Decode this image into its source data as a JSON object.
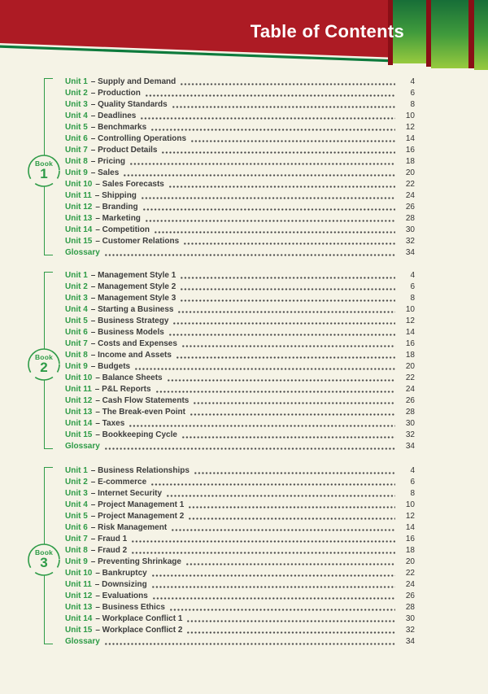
{
  "header": {
    "title": "Table of Contents"
  },
  "colors": {
    "banner_red": "#ad1b24",
    "strip_red": "#8a0f16",
    "slant_green": "#0d7a3c",
    "bar_green_top": "#176e38",
    "bar_green_mid": "#3f9a3c",
    "bar_green_bottom": "#97ca3e",
    "accent_green": "#2e9b47",
    "text_dark": "#3d3d3d",
    "background": "#f5f3e6"
  },
  "books": [
    {
      "badge_word": "Book",
      "number": "1",
      "entries": [
        {
          "num": "Unit 1",
          "title": "– Supply and Demand",
          "page": "4"
        },
        {
          "num": "Unit 2",
          "title": "– Production",
          "page": "6"
        },
        {
          "num": "Unit 3",
          "title": "– Quality Standards",
          "page": "8"
        },
        {
          "num": "Unit 4",
          "title": "– Deadlines",
          "page": "10"
        },
        {
          "num": "Unit 5",
          "title": "– Benchmarks",
          "page": "12"
        },
        {
          "num": "Unit 6",
          "title": "– Controlling Operations",
          "page": "14"
        },
        {
          "num": "Unit 7",
          "title": "– Product Details",
          "page": "16"
        },
        {
          "num": "Unit 8",
          "title": "– Pricing",
          "page": "18"
        },
        {
          "num": "Unit 9",
          "title": "– Sales",
          "page": "20"
        },
        {
          "num": "Unit 10",
          "title": "– Sales Forecasts",
          "page": "22"
        },
        {
          "num": "Unit 11",
          "title": "– Shipping",
          "page": "24"
        },
        {
          "num": "Unit 12",
          "title": "– Branding",
          "page": "26"
        },
        {
          "num": "Unit 13",
          "title": "– Marketing",
          "page": "28"
        },
        {
          "num": "Unit 14",
          "title": "– Competition",
          "page": "30"
        },
        {
          "num": "Unit 15",
          "title": "– Customer Relations",
          "page": "32"
        },
        {
          "num": "Glossary",
          "title": "",
          "page": "34"
        }
      ]
    },
    {
      "badge_word": "Book",
      "number": "2",
      "entries": [
        {
          "num": "Unit 1",
          "title": "– Management Style 1",
          "page": "4"
        },
        {
          "num": "Unit 2",
          "title": "– Management Style 2",
          "page": "6"
        },
        {
          "num": "Unit 3",
          "title": "– Management Style 3",
          "page": "8"
        },
        {
          "num": "Unit 4",
          "title": "– Starting a Business",
          "page": "10"
        },
        {
          "num": "Unit 5",
          "title": "– Business Strategy",
          "page": "12"
        },
        {
          "num": "Unit 6",
          "title": "– Business Models",
          "page": "14"
        },
        {
          "num": "Unit 7",
          "title": "– Costs and Expenses",
          "page": "16"
        },
        {
          "num": "Unit 8",
          "title": "– Income and Assets",
          "page": "18"
        },
        {
          "num": "Unit 9",
          "title": "– Budgets",
          "page": "20"
        },
        {
          "num": "Unit 10",
          "title": "– Balance Sheets",
          "page": "22"
        },
        {
          "num": "Unit 11",
          "title": "– P&L Reports",
          "page": "24"
        },
        {
          "num": "Unit 12",
          "title": "– Cash Flow Statements",
          "page": "26"
        },
        {
          "num": "Unit 13",
          "title": "– The Break-even Point",
          "page": "28"
        },
        {
          "num": "Unit 14",
          "title": "– Taxes",
          "page": "30"
        },
        {
          "num": "Unit 15",
          "title": "– Bookkeeping Cycle",
          "page": "32"
        },
        {
          "num": "Glossary",
          "title": "",
          "page": "34"
        }
      ]
    },
    {
      "badge_word": "Book",
      "number": "3",
      "entries": [
        {
          "num": "Unit 1",
          "title": "– Business Relationships",
          "page": "4"
        },
        {
          "num": "Unit 2",
          "title": "– E-commerce",
          "page": "6"
        },
        {
          "num": "Unit 3",
          "title": "– Internet Security",
          "page": "8"
        },
        {
          "num": "Unit 4",
          "title": "– Project Management 1",
          "page": "10"
        },
        {
          "num": "Unit 5",
          "title": "– Project Management 2",
          "page": "12"
        },
        {
          "num": "Unit 6",
          "title": "– Risk Management",
          "page": "14"
        },
        {
          "num": "Unit 7",
          "title": "– Fraud 1",
          "page": "16"
        },
        {
          "num": "Unit 8",
          "title": "– Fraud 2",
          "page": "18"
        },
        {
          "num": "Unit 9",
          "title": "– Preventing Shrinkage",
          "page": "20"
        },
        {
          "num": "Unit 10",
          "title": "– Bankruptcy",
          "page": "22"
        },
        {
          "num": "Unit 11",
          "title": "– Downsizing",
          "page": "24"
        },
        {
          "num": "Unit 12",
          "title": "– Evaluations",
          "page": "26"
        },
        {
          "num": "Unit 13",
          "title": "– Business Ethics",
          "page": "28"
        },
        {
          "num": "Unit 14",
          "title": "– Workplace Conflict 1",
          "page": "30"
        },
        {
          "num": "Unit 15",
          "title": "– Workplace Conflict 2",
          "page": "32"
        },
        {
          "num": "Glossary",
          "title": "",
          "page": "34"
        }
      ]
    }
  ]
}
